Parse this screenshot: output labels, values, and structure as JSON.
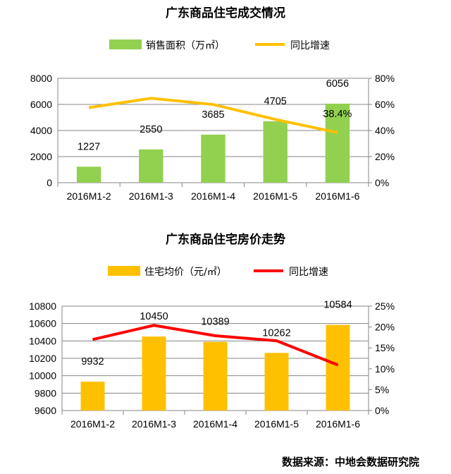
{
  "chart_data": [
    {
      "type": "bar+line",
      "title": "广东商品住宅成交情况",
      "categories": [
        "2016M1-2",
        "2016M1-3",
        "2016M1-4",
        "2016M1-5",
        "2016M1-6"
      ],
      "series": [
        {
          "name": "销售面积（万㎡）",
          "type": "bar",
          "axis": "left",
          "color": "#92D050",
          "values": [
            1227,
            2550,
            3685,
            4705,
            6056
          ],
          "labels": [
            "1227",
            "2550",
            "3685",
            "4705",
            "6056"
          ]
        },
        {
          "name": "同比增速",
          "type": "line",
          "axis": "right",
          "color": "#FFC000",
          "values": [
            57.5,
            64.7,
            59.9,
            48.5,
            38.4
          ],
          "labels": [
            "",
            "",
            "",
            "",
            "38.4%"
          ]
        }
      ],
      "ylim": [
        0,
        8000
      ],
      "yticks": [
        "0",
        "2000",
        "4000",
        "6000",
        "8000"
      ],
      "y2lim": [
        0,
        80
      ],
      "y2ticks": [
        "0%",
        "20%",
        "40%",
        "60%",
        "80%"
      ],
      "grid": true,
      "legend": "top"
    },
    {
      "type": "bar+line",
      "title": "广东商品住宅房价走势",
      "categories": [
        "2016M1-2",
        "2016M1-3",
        "2016M1-4",
        "2016M1-5",
        "2016M1-6"
      ],
      "series": [
        {
          "name": "住宅均价（元/㎡）",
          "type": "bar",
          "axis": "left",
          "color": "#FFC000",
          "values": [
            9932,
            10450,
            10389,
            10262,
            10584
          ],
          "labels": [
            "9932",
            "10450",
            "10389",
            "10262",
            "10584"
          ]
        },
        {
          "name": "同比增速",
          "type": "line",
          "axis": "right",
          "color": "#FF0000",
          "values": [
            17.0,
            20.4,
            17.9,
            16.7,
            10.9
          ],
          "labels": [
            "",
            "",
            "",
            "",
            ""
          ]
        }
      ],
      "ylim": [
        9600,
        10800
      ],
      "yticks": [
        "9600",
        "9800",
        "10000",
        "10200",
        "10400",
        "10600",
        "10800"
      ],
      "y2lim": [
        0,
        25
      ],
      "y2ticks": [
        "0%",
        "5%",
        "10%",
        "15%",
        "20%",
        "25%"
      ],
      "grid": true,
      "legend": "top"
    }
  ],
  "source": "数据来源：中地会数据研究院"
}
